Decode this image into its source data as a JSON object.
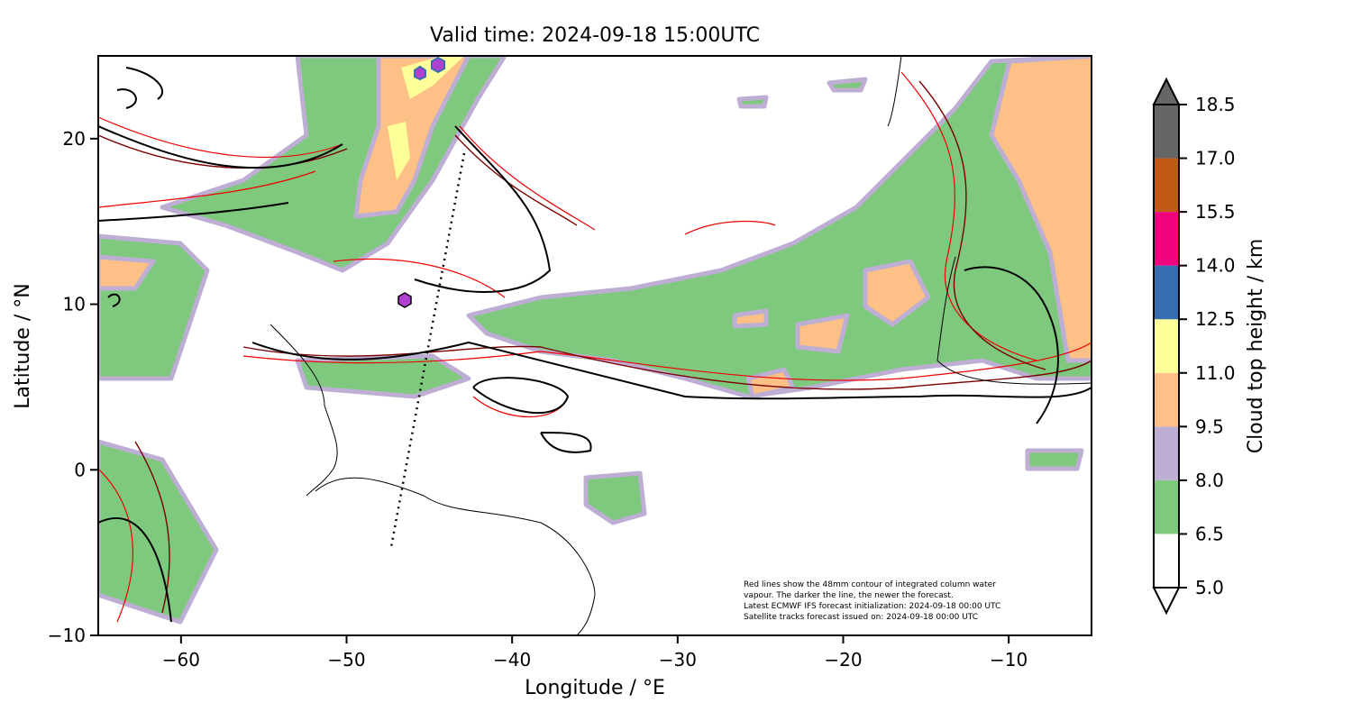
{
  "chart_data": {
    "type": "map",
    "title": "Valid time: 2024-09-18 15:00UTC",
    "xlabel": "Longitude / °E",
    "ylabel": "Latitude / °N",
    "xlim": [
      -65,
      -5
    ],
    "ylim": [
      -10,
      25
    ],
    "xticks": [
      {
        "value": -60,
        "label": "−60"
      },
      {
        "value": -50,
        "label": "−50"
      },
      {
        "value": -40,
        "label": "−40"
      },
      {
        "value": -30,
        "label": "−30"
      },
      {
        "value": -20,
        "label": "−20"
      },
      {
        "value": -10,
        "label": "−10"
      }
    ],
    "yticks": [
      {
        "value": -10,
        "label": "−10"
      },
      0,
      10,
      20
    ],
    "colorbar": {
      "label": "Cloud top height / km",
      "levels": [
        {
          "value": 5,
          "label": "5.0"
        },
        {
          "value": 6.5,
          "label": "6.5"
        },
        {
          "value": 8,
          "label": "8.0"
        },
        {
          "value": 9.5,
          "label": "9.5"
        },
        {
          "value": 11,
          "label": "11.0"
        },
        {
          "value": 12.5,
          "label": "12.5"
        },
        {
          "value": 14,
          "label": "14.0"
        },
        {
          "value": 15.5,
          "label": "15.5"
        },
        {
          "value": 17,
          "label": "17.0"
        },
        {
          "value": 18.5,
          "label": "18.5"
        }
      ],
      "colors": [
        "#ffffff",
        "#7fc97f",
        "#beaed4",
        "#fdc086",
        "#ffff99",
        "#386cb0",
        "#f0027f",
        "#bf5b17",
        "#666666"
      ]
    },
    "annotation": [
      "Red lines show the 48mm contour of integrated column water",
      "vapour. The darker the line, the newer the forecast.",
      "Latest ECMWF IFS forecast initialization: 2024-09-18 00:00 UTC",
      "Satellite tracks forecast issued on: 2024-09-18 00:00 UTC"
    ]
  }
}
